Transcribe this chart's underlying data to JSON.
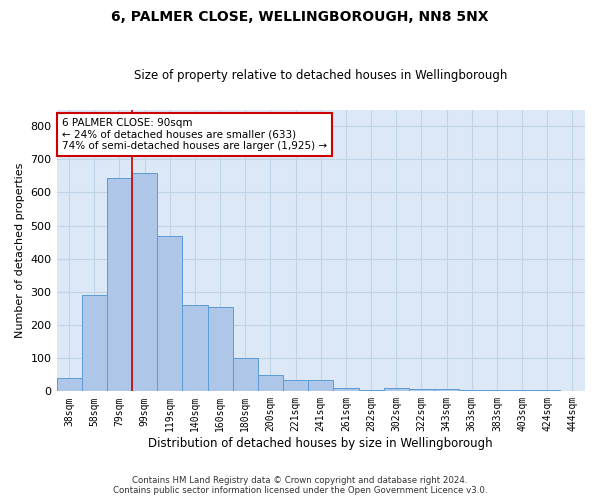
{
  "title": "6, PALMER CLOSE, WELLINGBOROUGH, NN8 5NX",
  "subtitle": "Size of property relative to detached houses in Wellingborough",
  "xlabel": "Distribution of detached houses by size in Wellingborough",
  "ylabel": "Number of detached properties",
  "categories": [
    "38sqm",
    "58sqm",
    "79sqm",
    "99sqm",
    "119sqm",
    "140sqm",
    "160sqm",
    "180sqm",
    "200sqm",
    "221sqm",
    "241sqm",
    "261sqm",
    "282sqm",
    "302sqm",
    "322sqm",
    "343sqm",
    "363sqm",
    "383sqm",
    "403sqm",
    "424sqm",
    "444sqm"
  ],
  "values": [
    40,
    290,
    645,
    660,
    470,
    260,
    255,
    100,
    50,
    35,
    35,
    10,
    5,
    10,
    7,
    7,
    3,
    3,
    3,
    3,
    2
  ],
  "bar_color": "#aec6e8",
  "bar_edge_color": "#5b9bd5",
  "annotation_line1": "6 PALMER CLOSE: 90sqm",
  "annotation_line2": "← 24% of detached houses are smaller (633)",
  "annotation_line3": "74% of semi-detached houses are larger (1,925) →",
  "annotation_box_color": "#ffffff",
  "annotation_box_edge_color": "#cc0000",
  "vline_x": 2.5,
  "vline_color": "#cc0000",
  "grid_color": "#c0d4e8",
  "plot_bg_color": "#dce8f5",
  "footer_line1": "Contains HM Land Registry data © Crown copyright and database right 2024.",
  "footer_line2": "Contains public sector information licensed under the Open Government Licence v3.0.",
  "ylim": [
    0,
    850
  ],
  "yticks": [
    0,
    100,
    200,
    300,
    400,
    500,
    600,
    700,
    800
  ]
}
